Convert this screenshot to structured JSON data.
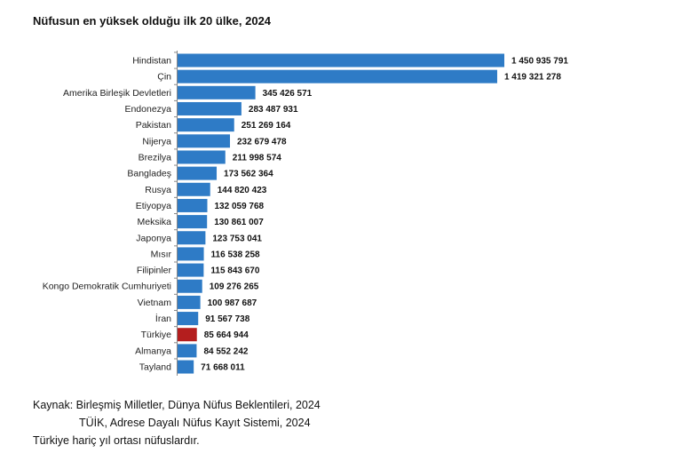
{
  "chart_data": {
    "type": "bar",
    "orientation": "horizontal",
    "title": "Nüfusun en yüksek olduğu ilk 20 ülke, 2024",
    "categories": [
      "Hindistan",
      "Çin",
      "Amerika Birleşik Devletleri",
      "Endonezya",
      "Pakistan",
      "Nijerya",
      "Brezilya",
      "Bangladeş",
      "Rusya",
      "Etiyopya",
      "Meksika",
      "Japonya",
      "Mısır",
      "Filipinler",
      "Kongo Demokratik Cumhuriyeti",
      "Vietnam",
      "İran",
      "Türkiye",
      "Almanya",
      "Tayland"
    ],
    "values": [
      1450935791,
      1419321278,
      345426571,
      283487931,
      251269164,
      232679478,
      211998574,
      173562364,
      144820423,
      132059768,
      130861007,
      123753041,
      116538258,
      115843670,
      109276265,
      100987687,
      91567738,
      85664944,
      84552242,
      71668011
    ],
    "value_labels": [
      "1 450 935 791",
      "1 419 321 278",
      "345 426 571",
      "283 487 931",
      "251 269 164",
      "232 679 478",
      "211 998 574",
      "173 562 364",
      "144 820 423",
      "132 059 768",
      "130 861 007",
      "123 753 041",
      "116 538 258",
      "115 843 670",
      "109 276 265",
      "100 987 687",
      "91 567 738",
      "85 664 944",
      "84 552 242",
      "71 668 011"
    ],
    "highlight_category": "Türkiye",
    "colors": {
      "bar": "#2e7bc6",
      "highlight": "#b41e1e"
    },
    "grid": false
  },
  "footer": {
    "source_line1": "Kaynak: Birleşmiş Milletler, Dünya Nüfus Beklentileri, 2024",
    "source_line2": "TÜİK, Adrese Dayalı Nüfus Kayıt Sistemi, 2024",
    "note": "Türkiye hariç yıl ortası nüfuslardır."
  }
}
